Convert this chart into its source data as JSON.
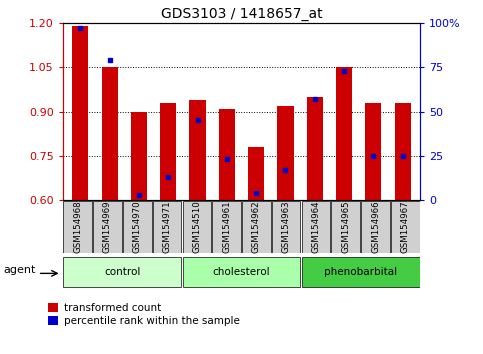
{
  "title": "GDS3103 / 1418657_at",
  "samples": [
    "GSM154968",
    "GSM154969",
    "GSM154970",
    "GSM154971",
    "GSM154510",
    "GSM154961",
    "GSM154962",
    "GSM154963",
    "GSM154964",
    "GSM154965",
    "GSM154966",
    "GSM154967"
  ],
  "transformed_count": [
    1.19,
    1.05,
    0.9,
    0.93,
    0.94,
    0.91,
    0.78,
    0.92,
    0.95,
    1.05,
    0.93,
    0.93
  ],
  "percentile_rank": [
    97,
    79,
    3,
    13,
    45,
    23,
    4,
    17,
    57,
    73,
    25,
    25
  ],
  "groups": [
    {
      "label": "control",
      "start": 0,
      "end": 4,
      "color": "#ccffcc"
    },
    {
      "label": "cholesterol",
      "start": 4,
      "end": 8,
      "color": "#aaffaa"
    },
    {
      "label": "phenobarbital",
      "start": 8,
      "end": 12,
      "color": "#44cc44"
    }
  ],
  "ylim_left": [
    0.6,
    1.2
  ],
  "ylim_right": [
    0,
    100
  ],
  "bar_color": "#cc0000",
  "dot_color": "#0000cc",
  "grid_color": "#000000",
  "title_fontsize": 10,
  "tick_color_left": "#cc0000",
  "tick_color_right": "#0000cc",
  "yticks_left": [
    0.6,
    0.75,
    0.9,
    1.05,
    1.2
  ],
  "yticks_right": [
    0,
    25,
    50,
    75,
    100
  ],
  "ytick_labels_right": [
    "0",
    "25",
    "50",
    "75",
    "100%"
  ],
  "xtick_bg_color": "#d0d0d0",
  "bar_width": 0.55,
  "xlim": [
    -0.6,
    11.6
  ]
}
